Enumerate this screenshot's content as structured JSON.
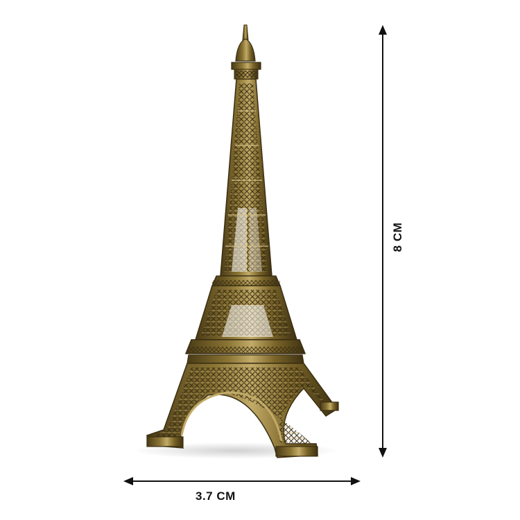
{
  "product": {
    "image_name": "eiffel-tower-figurine-icon",
    "metal_colors": {
      "dark": "#3a2e12",
      "mid": "#6e5a26",
      "light": "#b8a060",
      "highlight": "#d8c489"
    }
  },
  "dimensions": {
    "width_label": "3.7 CM",
    "height_label": "8 CM",
    "arrow_color": "#111111"
  }
}
